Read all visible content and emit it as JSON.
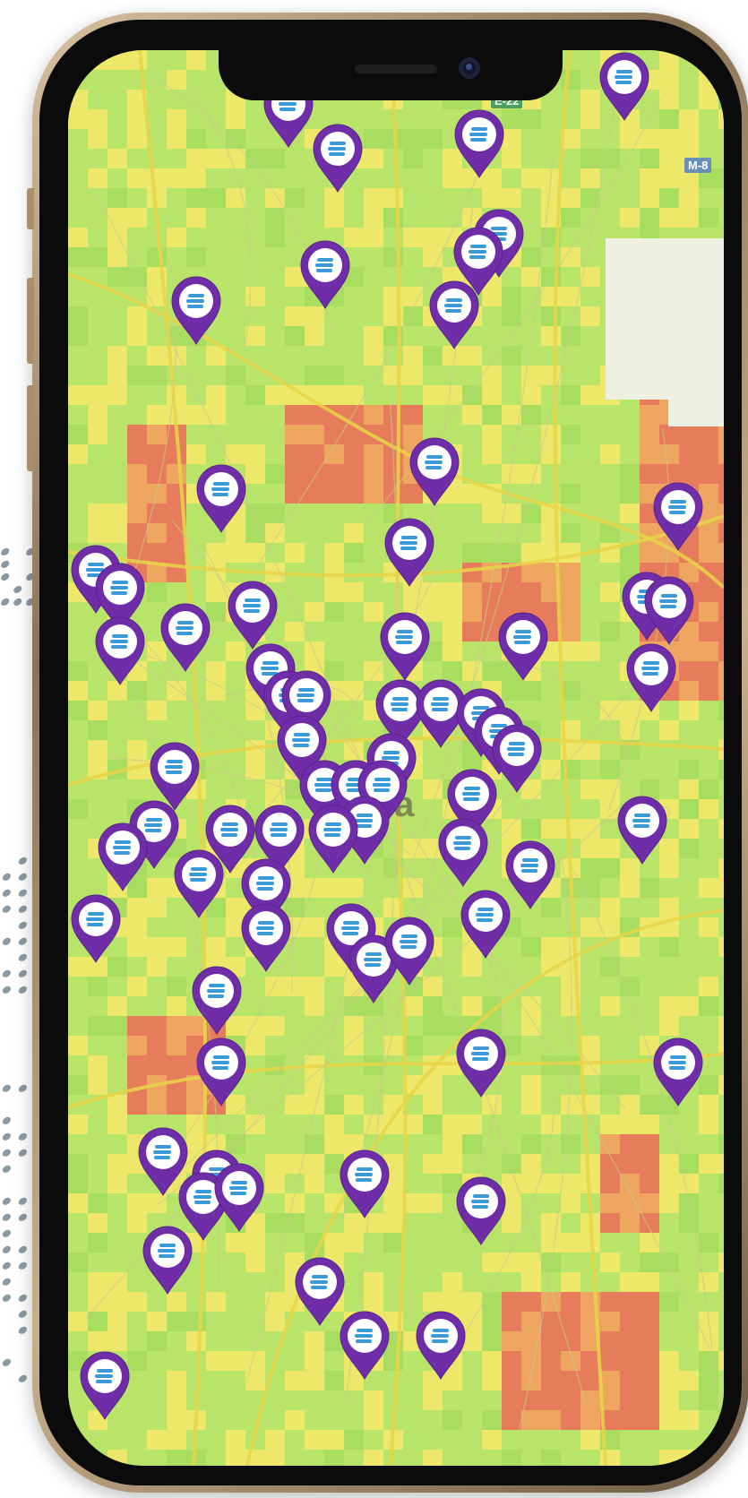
{
  "map": {
    "city_label": "ва",
    "road_labels": [
      {
        "name": "E-22",
        "kind": "green"
      },
      {
        "name": "M-8",
        "kind": "blue"
      }
    ],
    "marker_icon": "charging-station-pin-icon",
    "marker_color": "#6f2da8",
    "heatmap_colors": {
      "low": "#b8e46a",
      "medium": "#f1e86a",
      "high": "#f2a060",
      "very_high": "#e9735a"
    }
  },
  "device": {
    "frame_color": "#b49a76",
    "screen_shape": "rounded-with-notch"
  }
}
